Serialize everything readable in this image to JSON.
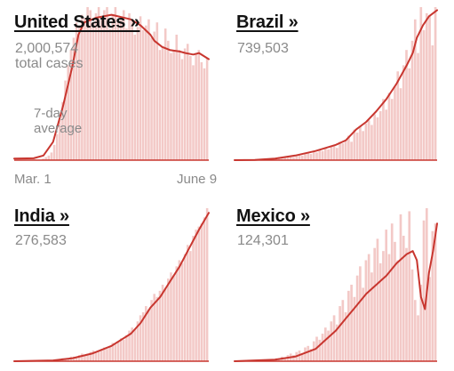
{
  "colors": {
    "bar": "#f3c9c7",
    "line": "#c8362f",
    "axis": "#c8362f",
    "title": "#121212",
    "muted": "#8a8a8a"
  },
  "annotations": {
    "total_cases_label": "total cases",
    "average_label_line1": "7-day",
    "average_label_line2": "average"
  },
  "chart_data": [
    {
      "type": "bar",
      "name": "United States",
      "title": "United States »",
      "total": "2,000,574",
      "xlabel_start": "Mar. 1",
      "xlabel_end": "June 9",
      "ylim": [
        0,
        1
      ],
      "average_points": [
        [
          0,
          0.01
        ],
        [
          0.1,
          0.012
        ],
        [
          0.15,
          0.03
        ],
        [
          0.2,
          0.12
        ],
        [
          0.25,
          0.35
        ],
        [
          0.3,
          0.62
        ],
        [
          0.33,
          0.82
        ],
        [
          0.36,
          0.9
        ],
        [
          0.42,
          0.93
        ],
        [
          0.5,
          0.95
        ],
        [
          0.6,
          0.92
        ],
        [
          0.65,
          0.88
        ],
        [
          0.7,
          0.82
        ],
        [
          0.72,
          0.78
        ],
        [
          0.76,
          0.74
        ],
        [
          0.8,
          0.72
        ],
        [
          0.85,
          0.71
        ],
        [
          0.88,
          0.7
        ],
        [
          0.92,
          0.69
        ],
        [
          0.95,
          0.7
        ],
        [
          1,
          0.66
        ]
      ],
      "bars": [
        0,
        0,
        0,
        0,
        0,
        0,
        0,
        0,
        0,
        0,
        0.01,
        0.02,
        0.03,
        0.05,
        0.1,
        0.17,
        0.26,
        0.38,
        0.52,
        0.62,
        0.72,
        0.8,
        0.9,
        0.88,
        0.95,
        0.93,
        1,
        0.98,
        0.9,
        0.96,
        1,
        0.92,
        0.98,
        1,
        0.86,
        0.95,
        1,
        0.9,
        0.92,
        0.98,
        0.86,
        0.96,
        0.92,
        0.82,
        0.87,
        0.94,
        0.85,
        0.88,
        0.92,
        0.8,
        0.84,
        0.9,
        0.72,
        0.74,
        0.86,
        0.78,
        0.7,
        0.72,
        0.82,
        0.72,
        0.66,
        0.73,
        0.76,
        0.68,
        0.62,
        0.7,
        0.72,
        0.64,
        0.6,
        0.67
      ]
    },
    {
      "type": "bar",
      "name": "Brazil",
      "title": "Brazil »",
      "total": "739,503",
      "ylim": [
        0,
        1
      ],
      "average_points": [
        [
          0,
          0
        ],
        [
          0.1,
          0.002
        ],
        [
          0.2,
          0.01
        ],
        [
          0.3,
          0.03
        ],
        [
          0.4,
          0.06
        ],
        [
          0.5,
          0.1
        ],
        [
          0.55,
          0.13
        ],
        [
          0.6,
          0.2
        ],
        [
          0.65,
          0.25
        ],
        [
          0.7,
          0.32
        ],
        [
          0.75,
          0.4
        ],
        [
          0.8,
          0.5
        ],
        [
          0.85,
          0.62
        ],
        [
          0.88,
          0.7
        ],
        [
          0.9,
          0.8
        ],
        [
          0.93,
          0.88
        ],
        [
          0.96,
          0.94
        ],
        [
          1,
          0.98
        ]
      ],
      "bars": [
        0,
        0,
        0,
        0,
        0,
        0,
        0,
        0,
        0,
        0,
        0,
        0,
        0.01,
        0.01,
        0.01,
        0.02,
        0.01,
        0.02,
        0.02,
        0.03,
        0.02,
        0.03,
        0.04,
        0.03,
        0.04,
        0.05,
        0.04,
        0.06,
        0.05,
        0.07,
        0.06,
        0.08,
        0.07,
        0.09,
        0.1,
        0.08,
        0.12,
        0.11,
        0.13,
        0.16,
        0.12,
        0.2,
        0.18,
        0.22,
        0.19,
        0.24,
        0.26,
        0.23,
        0.3,
        0.28,
        0.32,
        0.4,
        0.33,
        0.44,
        0.4,
        0.48,
        0.58,
        0.47,
        0.62,
        0.72,
        0.6,
        0.78,
        0.92,
        0.7,
        1,
        0.85,
        0.96,
        0.94,
        0.75,
        1
      ]
    },
    {
      "type": "bar",
      "name": "India",
      "title": "India »",
      "total": "276,583",
      "ylim": [
        0,
        1
      ],
      "average_points": [
        [
          0,
          0
        ],
        [
          0.2,
          0.005
        ],
        [
          0.3,
          0.02
        ],
        [
          0.4,
          0.05
        ],
        [
          0.5,
          0.1
        ],
        [
          0.6,
          0.18
        ],
        [
          0.65,
          0.25
        ],
        [
          0.7,
          0.35
        ],
        [
          0.75,
          0.42
        ],
        [
          0.8,
          0.52
        ],
        [
          0.85,
          0.62
        ],
        [
          0.9,
          0.74
        ],
        [
          0.95,
          0.86
        ],
        [
          1,
          0.97
        ]
      ],
      "bars": [
        0,
        0,
        0,
        0,
        0,
        0,
        0,
        0,
        0,
        0,
        0,
        0,
        0,
        0,
        0.01,
        0.01,
        0.01,
        0.02,
        0.02,
        0.02,
        0.03,
        0.03,
        0.03,
        0.04,
        0.05,
        0.04,
        0.05,
        0.06,
        0.07,
        0.06,
        0.07,
        0.08,
        0.09,
        0.08,
        0.1,
        0.12,
        0.11,
        0.13,
        0.15,
        0.14,
        0.17,
        0.2,
        0.22,
        0.21,
        0.26,
        0.3,
        0.32,
        0.36,
        0.34,
        0.4,
        0.44,
        0.42,
        0.46,
        0.5,
        0.48,
        0.54,
        0.58,
        0.56,
        0.62,
        0.66,
        0.64,
        0.7,
        0.76,
        0.72,
        0.82,
        0.86,
        0.88,
        0.9,
        0.94,
        1
      ]
    },
    {
      "type": "bar",
      "name": "Mexico",
      "title": "Mexico »",
      "total": "124,301",
      "ylim": [
        0,
        1
      ],
      "average_points": [
        [
          0,
          0
        ],
        [
          0.2,
          0.01
        ],
        [
          0.3,
          0.03
        ],
        [
          0.4,
          0.08
        ],
        [
          0.45,
          0.14
        ],
        [
          0.5,
          0.2
        ],
        [
          0.55,
          0.28
        ],
        [
          0.6,
          0.36
        ],
        [
          0.65,
          0.44
        ],
        [
          0.7,
          0.5
        ],
        [
          0.75,
          0.56
        ],
        [
          0.8,
          0.64
        ],
        [
          0.85,
          0.7
        ],
        [
          0.88,
          0.72
        ],
        [
          0.9,
          0.66
        ],
        [
          0.92,
          0.42
        ],
        [
          0.94,
          0.34
        ],
        [
          0.96,
          0.58
        ],
        [
          0.98,
          0.72
        ],
        [
          1,
          0.9
        ]
      ],
      "bars": [
        0,
        0,
        0,
        0,
        0,
        0,
        0,
        0,
        0,
        0,
        0,
        0,
        0.01,
        0.01,
        0.02,
        0.02,
        0.03,
        0.02,
        0.04,
        0.05,
        0.04,
        0.06,
        0.07,
        0.05,
        0.09,
        0.1,
        0.08,
        0.13,
        0.16,
        0.14,
        0.18,
        0.22,
        0.2,
        0.26,
        0.3,
        0.24,
        0.36,
        0.4,
        0.32,
        0.46,
        0.5,
        0.42,
        0.56,
        0.62,
        0.48,
        0.66,
        0.7,
        0.58,
        0.74,
        0.8,
        0.64,
        0.72,
        0.86,
        0.7,
        0.9,
        0.78,
        0.66,
        0.96,
        0.82,
        0.74,
        0.98,
        0.6,
        0.4,
        0.3,
        0.5,
        0.92,
        1,
        0.55,
        0.85,
        0.9
      ]
    }
  ]
}
